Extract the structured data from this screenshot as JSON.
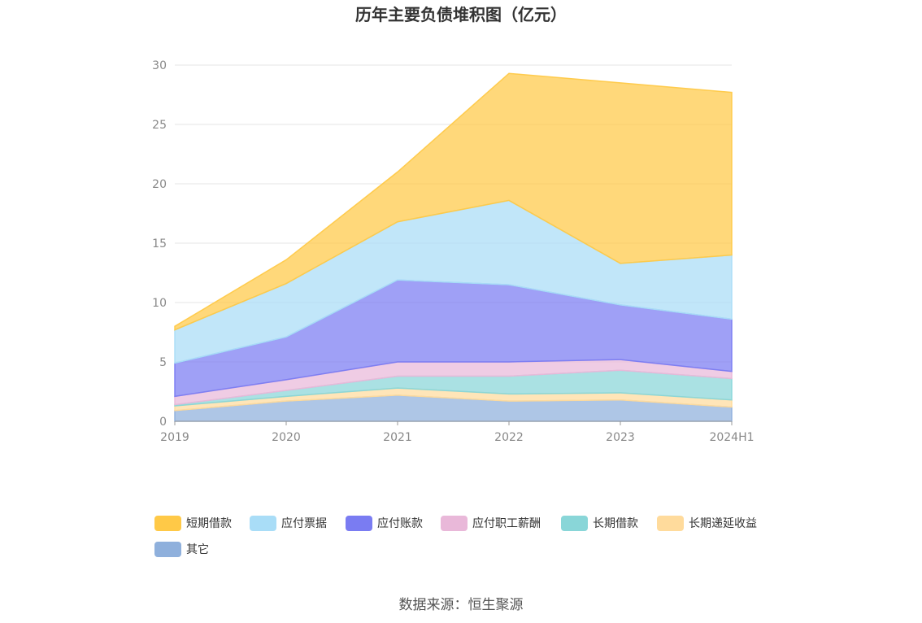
{
  "chart_data": {
    "type": "area",
    "stacked": true,
    "title": "历年主要负债堆积图（亿元）",
    "categories": [
      "2019",
      "2020",
      "2021",
      "2022",
      "2023",
      "2024H1"
    ],
    "ylim": [
      0,
      30
    ],
    "yticks": [
      0,
      5,
      10,
      15,
      20,
      25,
      30
    ],
    "grid": true,
    "legend_position": "bottom",
    "series": [
      {
        "name": "其它",
        "color": "#8fb0dc",
        "values": [
          0.9,
          1.7,
          2.2,
          1.7,
          1.8,
          1.2
        ]
      },
      {
        "name": "长期递延收益",
        "color": "#ffdb9c",
        "values": [
          0.4,
          0.4,
          0.6,
          0.6,
          0.6,
          0.6
        ]
      },
      {
        "name": "长期借款",
        "color": "#89d6d8",
        "values": [
          0.1,
          0.5,
          1.0,
          1.5,
          1.9,
          1.8
        ]
      },
      {
        "name": "应付职工薪酬",
        "color": "#e9b8d9",
        "values": [
          0.7,
          0.9,
          1.2,
          1.2,
          0.9,
          0.6
        ]
      },
      {
        "name": "应付账款",
        "color": "#7a7cf2",
        "values": [
          2.8,
          3.6,
          6.9,
          6.5,
          4.6,
          4.4
        ]
      },
      {
        "name": "应付票据",
        "color": "#a9ddf7",
        "values": [
          2.8,
          4.5,
          4.9,
          7.1,
          3.5,
          5.4
        ]
      },
      {
        "name": "短期借款",
        "color": "#ffc947",
        "values": [
          0.3,
          2.0,
          4.2,
          10.7,
          15.2,
          13.7
        ]
      }
    ]
  },
  "legend_order": [
    "短期借款",
    "应付票据",
    "应付账款",
    "应付职工薪酬",
    "长期借款",
    "长期递延收益",
    "其它"
  ],
  "source": "数据来源：恒生聚源"
}
